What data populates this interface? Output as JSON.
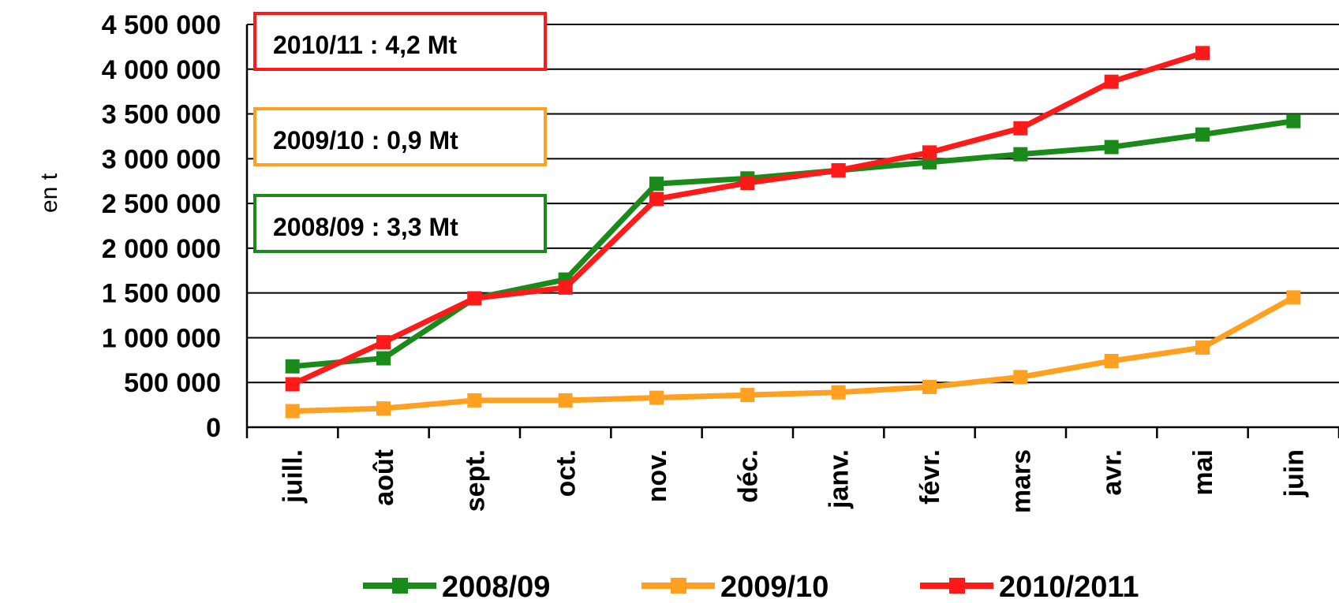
{
  "chart_data": {
    "type": "line",
    "ylabel": "en t",
    "xlabel": "",
    "title": "",
    "ylim": [
      0,
      4500000
    ],
    "yticks": [
      0,
      500000,
      1000000,
      1500000,
      2000000,
      2500000,
      3000000,
      3500000,
      4000000,
      4500000
    ],
    "ytick_labels": [
      "0",
      "500 000",
      "1 000 000",
      "1 500 000",
      "2 000 000",
      "2 500 000",
      "3 000 000",
      "3 500 000",
      "4 000 000",
      "4 500 000"
    ],
    "grid": true,
    "legend_position": "bottom",
    "categories": [
      "juill.",
      "août",
      "sept.",
      "oct.",
      "nov.",
      "déc.",
      "janv.",
      "févr.",
      "mars",
      "avr.",
      "mai",
      "juin"
    ],
    "series": [
      {
        "name": "2008/09",
        "color": "#1a8a1a",
        "values": [
          680000,
          770000,
          1440000,
          1650000,
          2720000,
          2780000,
          2870000,
          2960000,
          3050000,
          3130000,
          3270000,
          3420000
        ]
      },
      {
        "name": "2009/10",
        "color": "#ffa020",
        "values": [
          180000,
          210000,
          300000,
          300000,
          330000,
          360000,
          390000,
          450000,
          560000,
          740000,
          890000,
          1450000
        ]
      },
      {
        "name": "2010/2011",
        "color": "#ff1a1a",
        "values": [
          480000,
          950000,
          1440000,
          1560000,
          2550000,
          2730000,
          2870000,
          3070000,
          3340000,
          3860000,
          4180000,
          null
        ]
      }
    ],
    "annotations": [
      {
        "text": "2010/11 : 4,2 Mt",
        "color": "#ff1a1a"
      },
      {
        "text": "2009/10 : 0,9 Mt",
        "color": "#ffa020"
      },
      {
        "text": "2008/09 : 3,3 Mt",
        "color": "#1a8a1a"
      }
    ]
  }
}
